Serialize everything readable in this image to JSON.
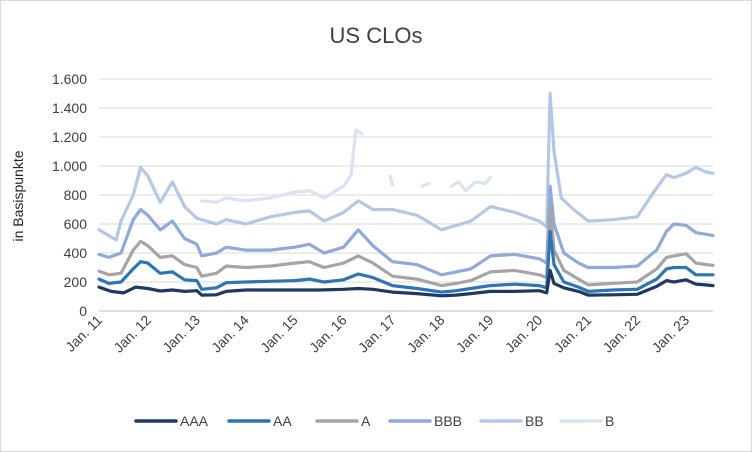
{
  "chart_data": {
    "type": "line",
    "title": "US CLOs",
    "ylabel": "in Basispunkte",
    "xlabel": "",
    "ylim": [
      0,
      1600
    ],
    "y_ticks": [
      0,
      200,
      400,
      600,
      800,
      1000,
      1200,
      1400,
      1600
    ],
    "y_tick_labels": [
      "0",
      "200",
      "400",
      "600",
      "800",
      "1.000",
      "1.200",
      "1.400",
      "1.600"
    ],
    "x_range": [
      2011.0,
      2023.55
    ],
    "x_ticks": [
      2011,
      2012,
      2013,
      2014,
      2015,
      2016,
      2017,
      2018,
      2019,
      2020,
      2021,
      2022,
      2023
    ],
    "x_tick_labels": [
      "Jan. 11",
      "Jan. 12",
      "Jan. 13",
      "Jan. 14",
      "Jan. 15",
      "Jan. 16",
      "Jan. 17",
      "Jan. 18",
      "Jan. 19",
      "Jan. 20",
      "Jan. 21",
      "Jan. 22",
      "Jan. 23"
    ],
    "grid": true,
    "legend_position": "bottom",
    "series": [
      {
        "name": "AAA",
        "color": "#1f3864",
        "points": [
          [
            2011.0,
            165
          ],
          [
            2011.25,
            135
          ],
          [
            2011.5,
            125
          ],
          [
            2011.75,
            165
          ],
          [
            2012.0,
            155
          ],
          [
            2012.25,
            138
          ],
          [
            2012.5,
            145
          ],
          [
            2012.75,
            135
          ],
          [
            2013.0,
            140
          ],
          [
            2013.1,
            110
          ],
          [
            2013.4,
            112
          ],
          [
            2013.6,
            135
          ],
          [
            2014.0,
            145
          ],
          [
            2014.5,
            145
          ],
          [
            2015.0,
            145
          ],
          [
            2015.5,
            145
          ],
          [
            2016.0,
            150
          ],
          [
            2016.3,
            155
          ],
          [
            2016.6,
            150
          ],
          [
            2017.0,
            130
          ],
          [
            2017.5,
            120
          ],
          [
            2018.0,
            105
          ],
          [
            2018.3,
            110
          ],
          [
            2018.6,
            120
          ],
          [
            2019.0,
            135
          ],
          [
            2019.5,
            135
          ],
          [
            2020.0,
            140
          ],
          [
            2020.15,
            125
          ],
          [
            2020.22,
            280
          ],
          [
            2020.3,
            190
          ],
          [
            2020.5,
            160
          ],
          [
            2020.8,
            135
          ],
          [
            2021.0,
            110
          ],
          [
            2021.5,
            112
          ],
          [
            2022.0,
            115
          ],
          [
            2022.4,
            170
          ],
          [
            2022.6,
            210
          ],
          [
            2022.75,
            200
          ],
          [
            2023.0,
            215
          ],
          [
            2023.2,
            185
          ],
          [
            2023.4,
            180
          ],
          [
            2023.55,
            175
          ]
        ]
      },
      {
        "name": "AA",
        "color": "#2e75b6",
        "points": [
          [
            2011.0,
            220
          ],
          [
            2011.2,
            190
          ],
          [
            2011.45,
            200
          ],
          [
            2011.7,
            290
          ],
          [
            2011.85,
            340
          ],
          [
            2012.0,
            330
          ],
          [
            2012.25,
            260
          ],
          [
            2012.5,
            270
          ],
          [
            2012.75,
            215
          ],
          [
            2013.0,
            210
          ],
          [
            2013.1,
            150
          ],
          [
            2013.4,
            160
          ],
          [
            2013.6,
            195
          ],
          [
            2014.0,
            200
          ],
          [
            2014.5,
            205
          ],
          [
            2015.0,
            210
          ],
          [
            2015.3,
            220
          ],
          [
            2015.6,
            200
          ],
          [
            2016.0,
            215
          ],
          [
            2016.3,
            255
          ],
          [
            2016.6,
            230
          ],
          [
            2017.0,
            175
          ],
          [
            2017.5,
            155
          ],
          [
            2018.0,
            130
          ],
          [
            2018.3,
            140
          ],
          [
            2018.6,
            155
          ],
          [
            2019.0,
            175
          ],
          [
            2019.5,
            185
          ],
          [
            2020.0,
            175
          ],
          [
            2020.15,
            160
          ],
          [
            2020.22,
            550
          ],
          [
            2020.3,
            320
          ],
          [
            2020.5,
            200
          ],
          [
            2020.8,
            165
          ],
          [
            2021.0,
            135
          ],
          [
            2021.5,
            145
          ],
          [
            2022.0,
            150
          ],
          [
            2022.4,
            220
          ],
          [
            2022.6,
            290
          ],
          [
            2022.75,
            300
          ],
          [
            2023.0,
            300
          ],
          [
            2023.2,
            250
          ],
          [
            2023.4,
            250
          ],
          [
            2023.55,
            250
          ]
        ]
      },
      {
        "name": "A",
        "color": "#a5a5a5",
        "points": [
          [
            2011.0,
            275
          ],
          [
            2011.2,
            250
          ],
          [
            2011.45,
            260
          ],
          [
            2011.7,
            420
          ],
          [
            2011.85,
            480
          ],
          [
            2012.0,
            450
          ],
          [
            2012.25,
            370
          ],
          [
            2012.5,
            380
          ],
          [
            2012.75,
            320
          ],
          [
            2013.0,
            300
          ],
          [
            2013.1,
            240
          ],
          [
            2013.4,
            260
          ],
          [
            2013.6,
            310
          ],
          [
            2014.0,
            300
          ],
          [
            2014.5,
            310
          ],
          [
            2015.0,
            330
          ],
          [
            2015.3,
            340
          ],
          [
            2015.6,
            300
          ],
          [
            2016.0,
            330
          ],
          [
            2016.3,
            380
          ],
          [
            2016.6,
            330
          ],
          [
            2017.0,
            240
          ],
          [
            2017.5,
            220
          ],
          [
            2018.0,
            175
          ],
          [
            2018.3,
            190
          ],
          [
            2018.6,
            210
          ],
          [
            2019.0,
            270
          ],
          [
            2019.5,
            280
          ],
          [
            2020.0,
            250
          ],
          [
            2020.15,
            230
          ],
          [
            2020.22,
            720
          ],
          [
            2020.3,
            420
          ],
          [
            2020.5,
            280
          ],
          [
            2020.8,
            220
          ],
          [
            2021.0,
            180
          ],
          [
            2021.5,
            190
          ],
          [
            2022.0,
            200
          ],
          [
            2022.4,
            290
          ],
          [
            2022.6,
            370
          ],
          [
            2022.75,
            380
          ],
          [
            2023.0,
            395
          ],
          [
            2023.2,
            330
          ],
          [
            2023.4,
            320
          ],
          [
            2023.55,
            315
          ]
        ]
      },
      {
        "name": "BBB",
        "color": "#8eaadb",
        "points": [
          [
            2011.0,
            390
          ],
          [
            2011.2,
            370
          ],
          [
            2011.45,
            400
          ],
          [
            2011.7,
            630
          ],
          [
            2011.85,
            700
          ],
          [
            2012.0,
            660
          ],
          [
            2012.25,
            560
          ],
          [
            2012.5,
            620
          ],
          [
            2012.75,
            500
          ],
          [
            2013.0,
            460
          ],
          [
            2013.1,
            380
          ],
          [
            2013.4,
            400
          ],
          [
            2013.6,
            440
          ],
          [
            2014.0,
            420
          ],
          [
            2014.5,
            420
          ],
          [
            2015.0,
            440
          ],
          [
            2015.3,
            460
          ],
          [
            2015.6,
            400
          ],
          [
            2016.0,
            440
          ],
          [
            2016.3,
            560
          ],
          [
            2016.6,
            450
          ],
          [
            2017.0,
            340
          ],
          [
            2017.5,
            320
          ],
          [
            2018.0,
            250
          ],
          [
            2018.3,
            270
          ],
          [
            2018.6,
            290
          ],
          [
            2019.0,
            380
          ],
          [
            2019.5,
            390
          ],
          [
            2020.0,
            360
          ],
          [
            2020.15,
            330
          ],
          [
            2020.22,
            860
          ],
          [
            2020.3,
            600
          ],
          [
            2020.5,
            400
          ],
          [
            2020.8,
            330
          ],
          [
            2021.0,
            300
          ],
          [
            2021.5,
            300
          ],
          [
            2022.0,
            310
          ],
          [
            2022.4,
            420
          ],
          [
            2022.6,
            550
          ],
          [
            2022.75,
            600
          ],
          [
            2023.0,
            590
          ],
          [
            2023.2,
            540
          ],
          [
            2023.4,
            530
          ],
          [
            2023.55,
            520
          ]
        ]
      },
      {
        "name": "BB",
        "color": "#b4c7e7",
        "points": [
          [
            2011.0,
            560
          ],
          [
            2011.2,
            520
          ],
          [
            2011.35,
            490
          ],
          [
            2011.45,
            620
          ],
          [
            2011.7,
            800
          ],
          [
            2011.85,
            990
          ],
          [
            2012.0,
            930
          ],
          [
            2012.25,
            750
          ],
          [
            2012.5,
            890
          ],
          [
            2012.75,
            720
          ],
          [
            2013.0,
            640
          ],
          [
            2013.1,
            630
          ],
          [
            2013.4,
            600
          ],
          [
            2013.6,
            630
          ],
          [
            2014.0,
            600
          ],
          [
            2014.5,
            650
          ],
          [
            2015.0,
            680
          ],
          [
            2015.3,
            690
          ],
          [
            2015.6,
            620
          ],
          [
            2016.0,
            680
          ],
          [
            2016.3,
            760
          ],
          [
            2016.6,
            700
          ],
          [
            2017.0,
            700
          ],
          [
            2017.5,
            660
          ],
          [
            2018.0,
            560
          ],
          [
            2018.3,
            590
          ],
          [
            2018.6,
            620
          ],
          [
            2019.0,
            720
          ],
          [
            2019.5,
            680
          ],
          [
            2020.0,
            620
          ],
          [
            2020.15,
            580
          ],
          [
            2020.22,
            1500
          ],
          [
            2020.3,
            1100
          ],
          [
            2020.45,
            780
          ],
          [
            2020.7,
            700
          ],
          [
            2021.0,
            620
          ],
          [
            2021.5,
            630
          ],
          [
            2022.0,
            650
          ],
          [
            2022.4,
            850
          ],
          [
            2022.6,
            940
          ],
          [
            2022.75,
            920
          ],
          [
            2023.0,
            950
          ],
          [
            2023.2,
            990
          ],
          [
            2023.4,
            960
          ],
          [
            2023.55,
            950
          ]
        ]
      },
      {
        "name": "B",
        "color": "#dae3f3",
        "segments": [
          [
            [
              2013.1,
              760
            ],
            [
              2013.4,
              750
            ],
            [
              2013.6,
              780
            ],
            [
              2014.0,
              760
            ],
            [
              2014.5,
              780
            ],
            [
              2015.0,
              820
            ],
            [
              2015.3,
              830
            ],
            [
              2015.6,
              780
            ],
            [
              2016.0,
              860
            ],
            [
              2016.15,
              940
            ],
            [
              2016.25,
              1250
            ],
            [
              2016.38,
              1220
            ]
          ],
          [
            [
              2016.95,
              930
            ],
            [
              2017.0,
              870
            ]
          ],
          [
            [
              2017.6,
              860
            ],
            [
              2017.75,
              880
            ]
          ],
          [
            [
              2018.2,
              860
            ],
            [
              2018.35,
              890
            ],
            [
              2018.5,
              830
            ],
            [
              2018.7,
              890
            ],
            [
              2018.9,
              880
            ],
            [
              2019.0,
              920
            ]
          ]
        ]
      }
    ]
  }
}
